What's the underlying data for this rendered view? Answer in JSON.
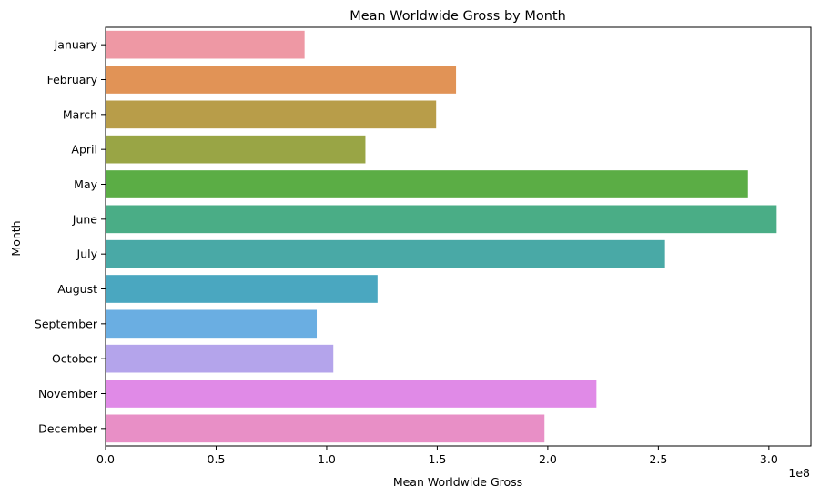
{
  "chart_data": {
    "type": "bar",
    "orientation": "horizontal",
    "title": "Mean Worldwide Gross by Month",
    "xlabel": "Mean Worldwide Gross",
    "ylabel": "Month",
    "x_offset_text": "1e8",
    "xlim": [
      0,
      3.19
    ],
    "x_ticks": [
      0.0,
      0.5,
      1.0,
      1.5,
      2.0,
      2.5,
      3.0
    ],
    "x_tick_labels": [
      "0.0",
      "0.5",
      "1.0",
      "1.5",
      "2.0",
      "2.5",
      "3.0"
    ],
    "grid": false,
    "categories": [
      "January",
      "February",
      "March",
      "April",
      "May",
      "June",
      "July",
      "August",
      "September",
      "October",
      "November",
      "December"
    ],
    "values": [
      0.9,
      1.585,
      1.495,
      1.175,
      2.905,
      3.035,
      2.53,
      1.23,
      0.955,
      1.03,
      2.22,
      1.985
    ],
    "colors": [
      "#ee98a4",
      "#e19356",
      "#b89d49",
      "#99a545",
      "#5bad45",
      "#4aad86",
      "#49a9a6",
      "#4aa7c0",
      "#6aaee2",
      "#b4a4eb",
      "#e08ae7",
      "#e88fc6"
    ]
  }
}
